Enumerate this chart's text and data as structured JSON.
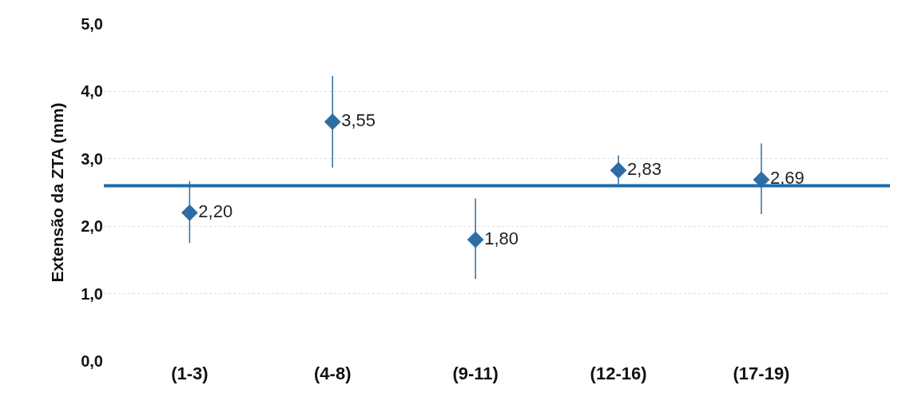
{
  "chart_data": {
    "type": "scatter",
    "ylabel": "Extensão da ZTA (mm)",
    "categories": [
      "(1-3)",
      "(4-8)",
      "(9-11)",
      "(12-16)",
      "(17-19)"
    ],
    "series": [
      {
        "color": "#2e6da4",
        "values": [
          2.2,
          3.55,
          1.8,
          2.83,
          2.69
        ],
        "value_labels": [
          "2,20",
          "3,55",
          "1,80",
          "2,83",
          "2,69"
        ],
        "errors": [
          [
            1.75,
            2.67
          ],
          [
            2.87,
            4.23
          ],
          [
            1.22,
            2.41
          ],
          [
            2.62,
            3.05
          ],
          [
            2.18,
            3.23
          ]
        ]
      }
    ],
    "ref_lines": [
      {
        "axis": "y",
        "value": 2.6,
        "color": "#1f6ca8"
      }
    ],
    "ylim": [
      0,
      5
    ],
    "yticks": [
      {
        "value": 0,
        "label": "0,0"
      },
      {
        "value": 1,
        "label": "1,0"
      },
      {
        "value": 2,
        "label": "2,0"
      },
      {
        "value": 3,
        "label": "3,0"
      },
      {
        "value": 4,
        "label": "4,0"
      },
      {
        "value": 5,
        "label": "5,0"
      }
    ],
    "grid": "y",
    "marker": "diamond",
    "legend": false
  }
}
